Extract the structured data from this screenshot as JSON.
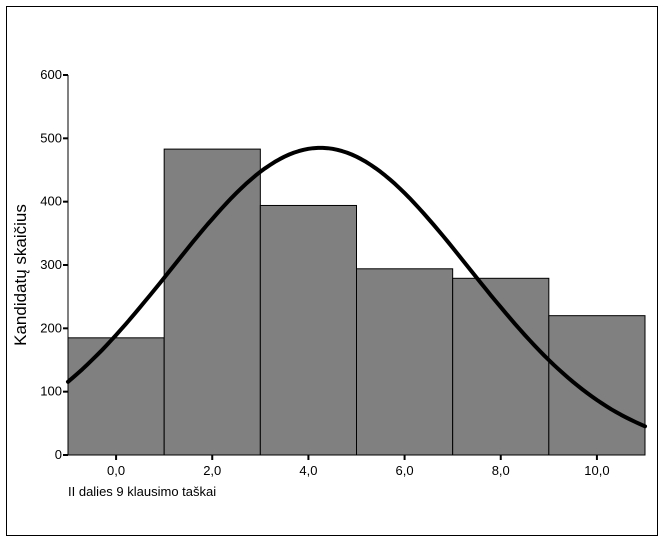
{
  "chart_data": {
    "type": "bar",
    "title": "",
    "xlabel": "II dalies 9 klausimo taškai",
    "ylabel": "Kandidatų skaičius",
    "categories": [
      "0,0",
      "2,0",
      "4,0",
      "6,0",
      "8,0",
      "10,0"
    ],
    "bin_centers": [
      0,
      2,
      4,
      6,
      8,
      10
    ],
    "bin_width": 2,
    "values": [
      185,
      483,
      394,
      294,
      279,
      220
    ],
    "ylim": [
      0,
      600
    ],
    "yticks": [
      0,
      100,
      200,
      300,
      400,
      500,
      600
    ],
    "xlim": [
      -1,
      11
    ],
    "grid": false,
    "bar_color": "#808080",
    "curve": {
      "type": "normal",
      "color": "#000000",
      "mean": 4.25,
      "std": 3.1,
      "peak": 485
    }
  }
}
